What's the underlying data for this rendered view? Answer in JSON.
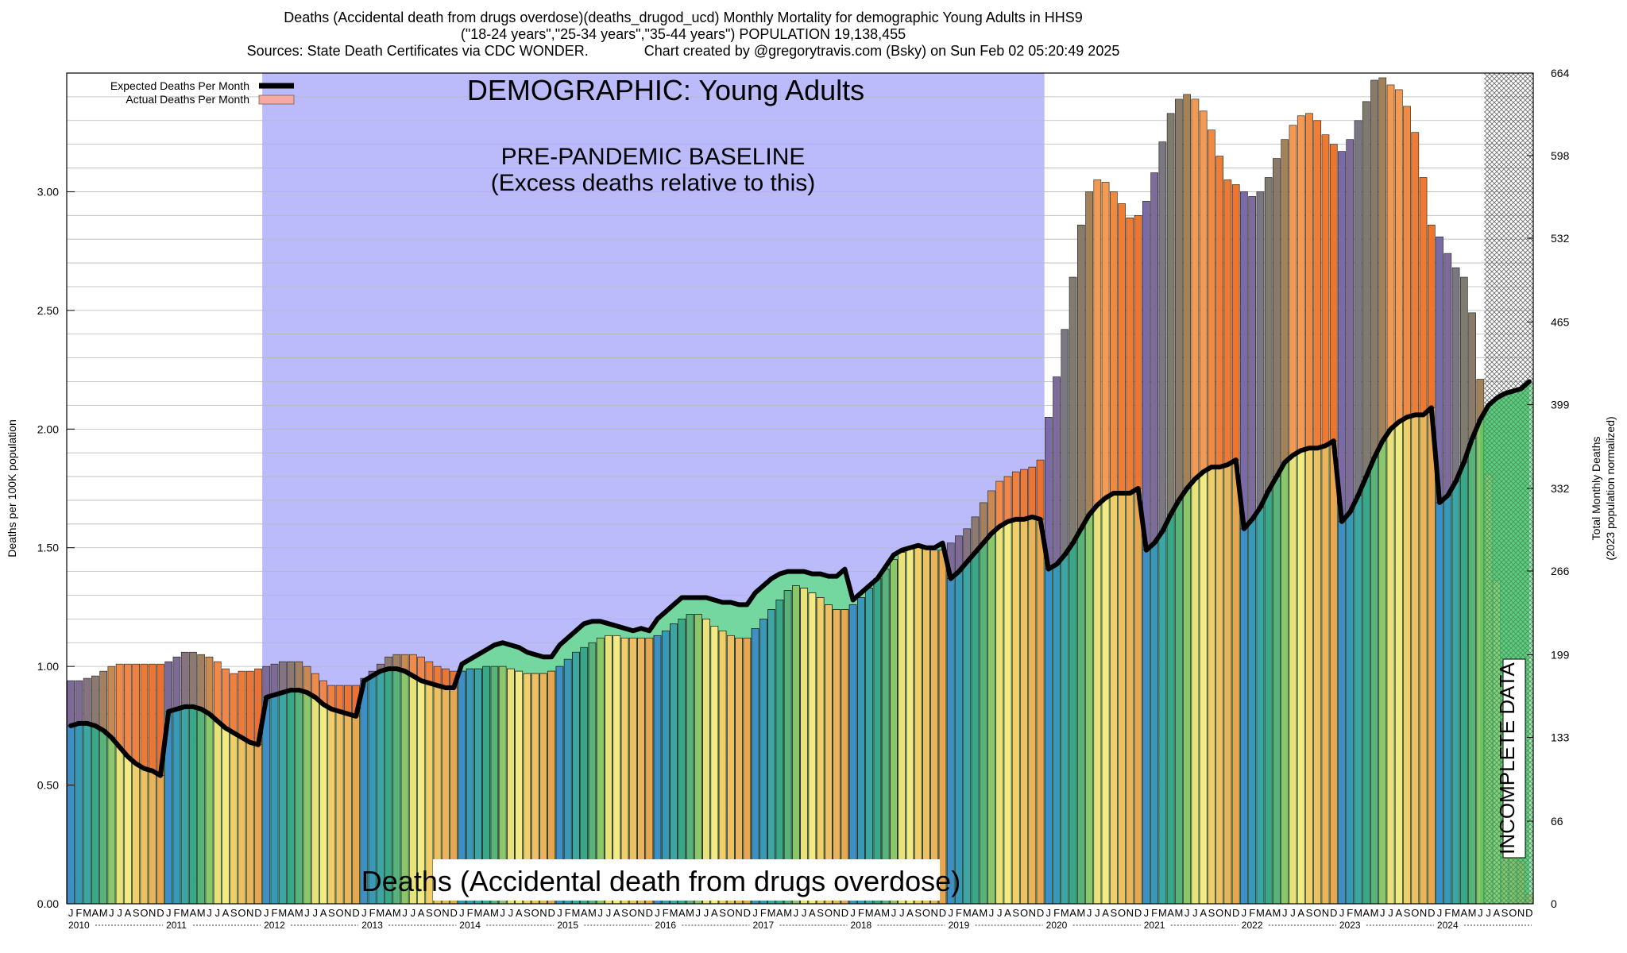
{
  "header": {
    "line1": "Deaths (Accidental death from drugs overdose)(deaths_drugod_ucd) Monthly Mortality for demographic Young Adults in HHS9",
    "line2": "(\"18-24 years\",\"25-34 years\",\"35-44 years\") POPULATION 19,138,455",
    "line3": "Sources: State Death Certificates via CDC WONDER.              Chart created by @gregorytravis.com (Bsky) on Sun Feb 02 05:20:49 2025"
  },
  "chart_data": {
    "type": "bar",
    "title": "Deaths (Accidental death from drugs overdose)(deaths_drugod_ucd) Monthly Mortality for demographic Young Adults in HHS9",
    "ylabel": "Deaths per 100K population",
    "y2label_line1": "Total Monthly Deaths",
    "y2label_line2": "(2023 population normalized)",
    "ylim": [
      0,
      3.5
    ],
    "y2lim": [
      0,
      664
    ],
    "left_ticks": [
      "0.00",
      "0.50",
      "1.00",
      "1.50",
      "2.00",
      "2.50",
      "3.00"
    ],
    "left_tick_values": [
      0,
      0.5,
      1.0,
      1.5,
      2.0,
      2.5,
      3.0
    ],
    "right_ticks": [
      "0",
      "66",
      "133",
      "199",
      "266",
      "332",
      "399",
      "465",
      "532",
      "598",
      "664"
    ],
    "month_letters": [
      "J",
      "F",
      "M",
      "A",
      "M",
      "J",
      "J",
      "A",
      "S",
      "O",
      "N",
      "D"
    ],
    "years": [
      "2010",
      "2011",
      "2012",
      "2013",
      "2014",
      "2015",
      "2016",
      "2017",
      "2018",
      "2019",
      "2020",
      "2021",
      "2022",
      "2023",
      "2024"
    ],
    "legend": {
      "expected": "Expected Deaths Per Month",
      "actual": "Actual Deaths Per Month"
    },
    "annotations": {
      "demographic": "DEMOGRAPHIC: Young Adults",
      "baseline_line1": "PRE-PANDEMIC BASELINE",
      "baseline_line2": "(Excess deaths relative to this)",
      "bottom_label": "Deaths (Accidental death from drugs overdose)",
      "incomplete": "INCOMPLETE DATA"
    },
    "baseline_period": {
      "start": "2012-01",
      "end": "2019-12"
    },
    "incomplete_period": {
      "start": "2024-07",
      "end": "2024-12"
    },
    "series": [
      {
        "name": "Actual Deaths Per Month",
        "values": [
          0.94,
          0.94,
          0.95,
          0.96,
          0.98,
          1.0,
          1.01,
          1.01,
          1.01,
          1.01,
          1.01,
          1.01,
          1.02,
          1.04,
          1.06,
          1.06,
          1.05,
          1.04,
          1.02,
          0.99,
          0.97,
          0.98,
          0.98,
          0.99,
          1.0,
          1.01,
          1.02,
          1.02,
          1.02,
          1.0,
          0.97,
          0.94,
          0.92,
          0.92,
          0.92,
          0.92,
          0.95,
          0.98,
          1.01,
          1.04,
          1.05,
          1.05,
          1.05,
          1.04,
          1.02,
          1.0,
          0.99,
          0.98,
          0.98,
          0.99,
          0.99,
          1.0,
          1.0,
          1.0,
          0.99,
          0.98,
          0.97,
          0.97,
          0.97,
          0.98,
          1.0,
          1.03,
          1.06,
          1.08,
          1.1,
          1.12,
          1.13,
          1.13,
          1.12,
          1.12,
          1.12,
          1.12,
          1.13,
          1.15,
          1.18,
          1.2,
          1.22,
          1.22,
          1.2,
          1.17,
          1.15,
          1.13,
          1.12,
          1.12,
          1.16,
          1.2,
          1.24,
          1.28,
          1.32,
          1.34,
          1.33,
          1.31,
          1.29,
          1.26,
          1.24,
          1.24,
          1.26,
          1.29,
          1.33,
          1.37,
          1.41,
          1.45,
          1.48,
          1.5,
          1.5,
          1.5,
          1.49,
          1.49,
          1.52,
          1.55,
          1.58,
          1.63,
          1.69,
          1.74,
          1.78,
          1.8,
          1.82,
          1.83,
          1.84,
          1.87,
          2.05,
          2.22,
          2.42,
          2.64,
          2.86,
          3.0,
          3.05,
          3.04,
          3.0,
          2.95,
          2.89,
          2.9,
          2.96,
          3.08,
          3.21,
          3.33,
          3.39,
          3.41,
          3.39,
          3.34,
          3.26,
          3.15,
          3.05,
          3.03,
          3.0,
          2.98,
          3.0,
          3.06,
          3.14,
          3.22,
          3.28,
          3.32,
          3.33,
          3.3,
          3.24,
          3.2,
          3.17,
          3.22,
          3.3,
          3.38,
          3.47,
          3.48,
          3.45,
          3.43,
          3.36,
          3.25,
          3.06,
          2.86,
          2.81,
          2.74,
          2.68,
          2.64,
          2.49,
          2.21,
          1.81,
          1.36,
          0.92,
          0.55,
          0.18,
          0.04
        ]
      },
      {
        "name": "Expected Deaths Per Month",
        "values": [
          0.75,
          0.76,
          0.76,
          0.75,
          0.73,
          0.7,
          0.66,
          0.62,
          0.59,
          0.57,
          0.56,
          0.54,
          0.81,
          0.82,
          0.83,
          0.83,
          0.82,
          0.8,
          0.77,
          0.74,
          0.72,
          0.7,
          0.68,
          0.67,
          0.87,
          0.88,
          0.89,
          0.9,
          0.9,
          0.89,
          0.87,
          0.84,
          0.82,
          0.81,
          0.8,
          0.79,
          0.94,
          0.96,
          0.98,
          0.99,
          0.99,
          0.98,
          0.96,
          0.94,
          0.93,
          0.92,
          0.91,
          0.91,
          1.01,
          1.03,
          1.05,
          1.07,
          1.09,
          1.1,
          1.09,
          1.08,
          1.06,
          1.05,
          1.04,
          1.04,
          1.09,
          1.12,
          1.15,
          1.18,
          1.19,
          1.19,
          1.18,
          1.17,
          1.16,
          1.15,
          1.16,
          1.15,
          1.2,
          1.23,
          1.26,
          1.29,
          1.29,
          1.29,
          1.29,
          1.28,
          1.27,
          1.27,
          1.26,
          1.26,
          1.31,
          1.34,
          1.37,
          1.39,
          1.4,
          1.4,
          1.4,
          1.39,
          1.39,
          1.38,
          1.38,
          1.41,
          1.28,
          1.31,
          1.34,
          1.37,
          1.42,
          1.47,
          1.49,
          1.5,
          1.51,
          1.5,
          1.5,
          1.52,
          1.37,
          1.4,
          1.44,
          1.48,
          1.52,
          1.56,
          1.59,
          1.61,
          1.62,
          1.62,
          1.63,
          1.62,
          1.41,
          1.43,
          1.47,
          1.52,
          1.58,
          1.64,
          1.68,
          1.71,
          1.73,
          1.73,
          1.73,
          1.75,
          1.49,
          1.52,
          1.57,
          1.64,
          1.7,
          1.75,
          1.79,
          1.82,
          1.84,
          1.84,
          1.85,
          1.87,
          1.58,
          1.62,
          1.67,
          1.74,
          1.8,
          1.86,
          1.89,
          1.91,
          1.92,
          1.92,
          1.93,
          1.95,
          1.61,
          1.65,
          1.72,
          1.8,
          1.88,
          1.95,
          2.0,
          2.03,
          2.05,
          2.06,
          2.06,
          2.09,
          1.69,
          1.72,
          1.78,
          1.86,
          1.96,
          2.04,
          2.1,
          2.13,
          2.15,
          2.16,
          2.17,
          2.2
        ]
      }
    ]
  }
}
